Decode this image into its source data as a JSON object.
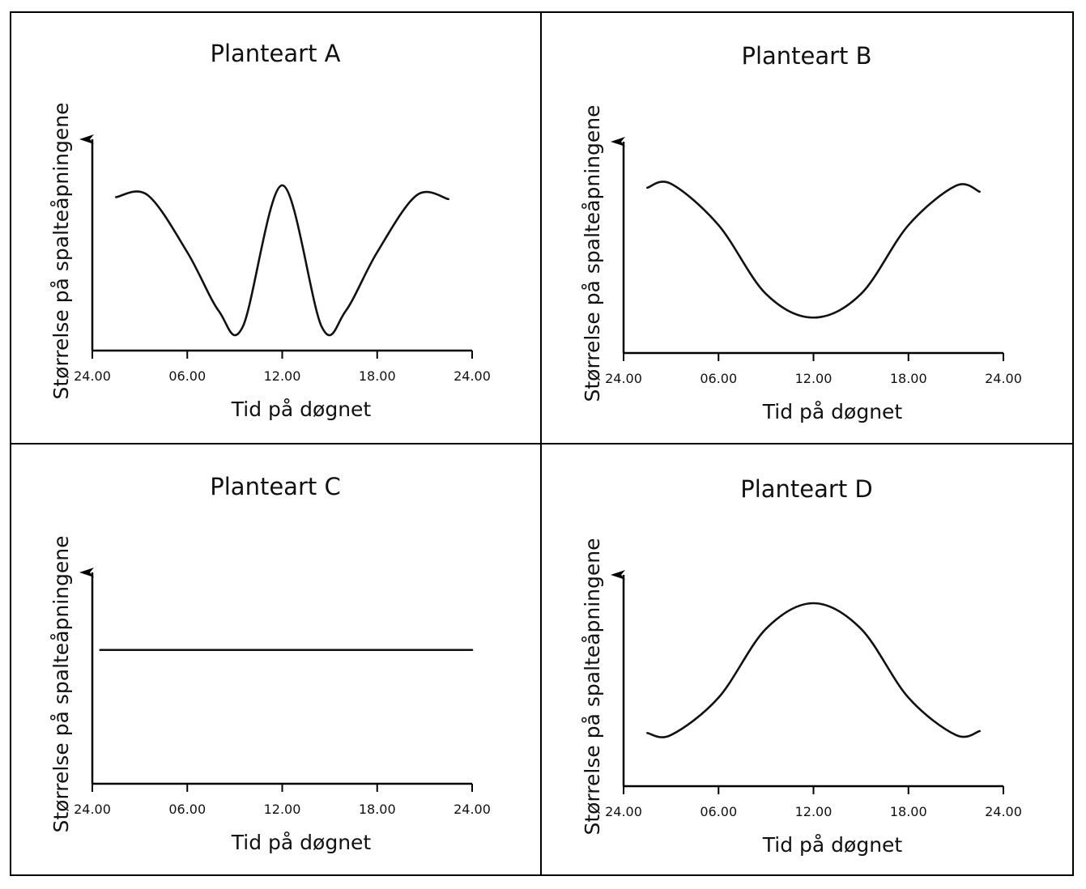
{
  "chart_data": [
    {
      "type": "line",
      "title": "Planteart A",
      "xlabel": "Tid på døgnet",
      "ylabel": "Størrelse på spalteåpningene",
      "x_ticks": [
        "24.00",
        "06.00",
        "12.00",
        "18.00",
        "24.00"
      ],
      "xlim": [
        0,
        24
      ],
      "ylim": [
        0,
        10
      ],
      "y_ticks_shown": false,
      "series": [
        {
          "x": [
            1.5,
            3.5,
            6,
            8,
            9.5,
            12,
            14.5,
            16,
            18,
            20.5,
            22.5
          ],
          "values": [
            7.8,
            7.9,
            5.0,
            2.0,
            1.2,
            8.4,
            1.2,
            2.0,
            5.0,
            7.9,
            7.7
          ]
        }
      ]
    },
    {
      "type": "line",
      "title": "Planteart B",
      "xlabel": "Tid på døgnet",
      "ylabel": "Størrelse på spalteåpningene",
      "x_ticks": [
        "24.00",
        "06.00",
        "12.00",
        "18.00",
        "24.00"
      ],
      "xlim": [
        0,
        24
      ],
      "ylim": [
        0,
        10
      ],
      "y_ticks_shown": false,
      "series": [
        {
          "x": [
            1.5,
            3,
            6,
            9,
            12,
            15,
            18,
            21,
            22.5
          ],
          "values": [
            8.4,
            8.6,
            6.5,
            3.0,
            1.8,
            3.0,
            6.5,
            8.5,
            8.2
          ]
        }
      ]
    },
    {
      "type": "line",
      "title": "Planteart C",
      "xlabel": "Tid på døgnet",
      "ylabel": "Størrelse på spalteåpningene",
      "x_ticks": [
        "24.00",
        "06.00",
        "12.00",
        "18.00",
        "24.00"
      ],
      "xlim": [
        0,
        24
      ],
      "ylim": [
        0,
        10
      ],
      "y_ticks_shown": false,
      "series": [
        {
          "x": [
            0.5,
            24
          ],
          "values": [
            6.8,
            6.8
          ]
        }
      ]
    },
    {
      "type": "line",
      "title": "Planteart D",
      "xlabel": "Tid på døgnet",
      "ylabel": "Størrelse på spalteåpningene",
      "x_ticks": [
        "24.00",
        "06.00",
        "12.00",
        "18.00",
        "24.00"
      ],
      "xlim": [
        0,
        24
      ],
      "ylim": [
        0,
        10
      ],
      "y_ticks_shown": false,
      "series": [
        {
          "x": [
            1.5,
            3,
            6,
            9,
            12,
            15,
            18,
            21,
            22.5
          ],
          "values": [
            2.7,
            2.6,
            4.5,
            8.0,
            9.3,
            8.0,
            4.5,
            2.6,
            2.8
          ]
        }
      ]
    }
  ]
}
